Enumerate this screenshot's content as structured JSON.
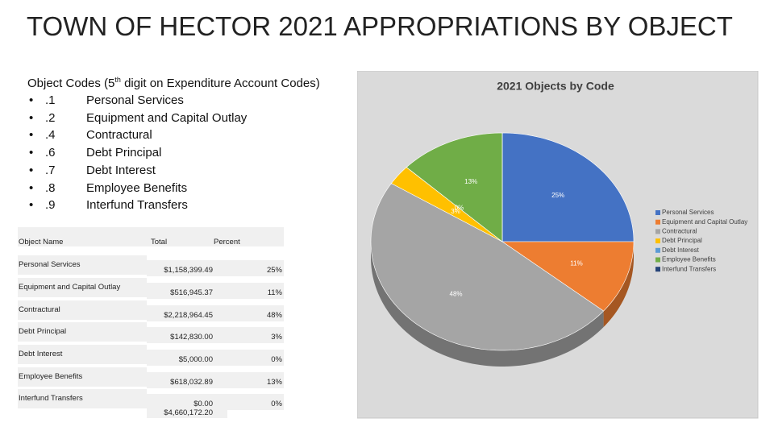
{
  "title": "TOWN OF HECTOR 2021 APPROPRIATIONS BY OBJECT",
  "codes": {
    "heading": {
      "before": "Object Codes (5",
      "sup": "th",
      "after": " digit on Expenditure Account Codes)"
    },
    "items": [
      {
        "code": ".1",
        "label": "Personal Services"
      },
      {
        "code": ".2",
        "label": "Equipment and Capital Outlay"
      },
      {
        "code": ".4",
        "label": "Contractural"
      },
      {
        "code": ".6",
        "label": "Debt Principal"
      },
      {
        "code": ".7",
        "label": "Debt Interest"
      },
      {
        "code": ".8",
        "label": "Employee Benefits"
      },
      {
        "code": ".9",
        "label": "Interfund Transfers"
      }
    ]
  },
  "table": {
    "header": [
      "Object Name",
      "Total",
      "Percent"
    ],
    "rows": [
      [
        "Personal Services",
        "$1,158,399.49",
        "25%"
      ],
      [
        "Equipment and Capital Outlay",
        "$516,945.37",
        "11%"
      ],
      [
        "Contractural",
        "$2,218,964.45",
        "48%"
      ],
      [
        "Debt Principal",
        "$142,830.00",
        "3%"
      ],
      [
        "Debt Interest",
        "$5,000.00",
        "0%"
      ],
      [
        "Employee Benefits",
        "$618,032.89",
        "13%"
      ],
      [
        "Interfund Transfers",
        "$0.00",
        "0%"
      ]
    ],
    "total": "$4,660,172.20"
  },
  "chart_data": {
    "type": "pie",
    "title": "2021 Objects by Code",
    "categories": [
      "Personal Services",
      "Equipment and Capital Outlay",
      "Contractural",
      "Debt Principal",
      "Debt Interest",
      "Employee Benefits",
      "Interfund Transfers"
    ],
    "values": [
      25,
      11,
      48,
      3,
      0,
      13,
      0
    ],
    "value_labels": [
      "25%",
      "11%",
      "48%",
      "3%",
      "0%",
      "13%",
      null
    ],
    "colors": [
      "#4472c4",
      "#ed7d31",
      "#a5a5a5",
      "#ffc000",
      "#5b9bd5",
      "#70ad47",
      "#264478"
    ],
    "legend": "right"
  }
}
